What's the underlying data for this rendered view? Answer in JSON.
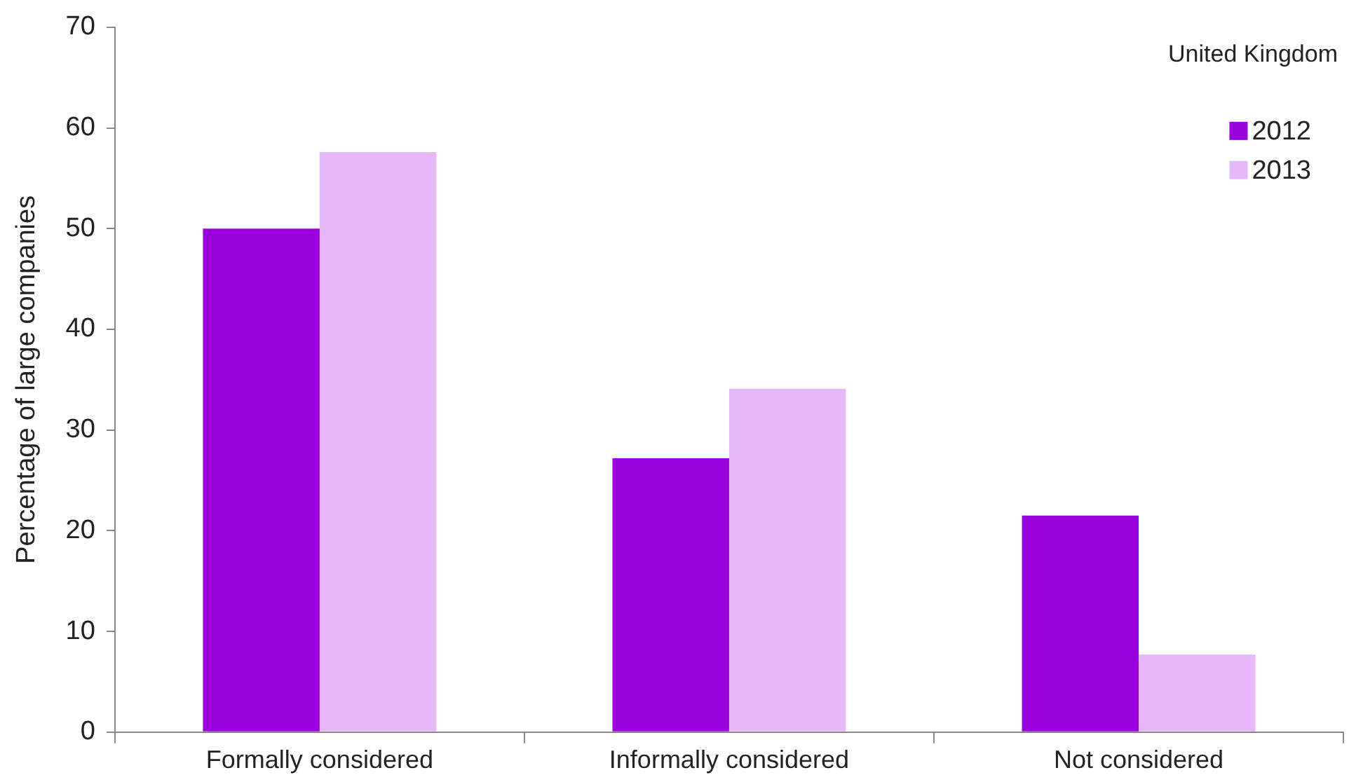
{
  "chart_data": {
    "type": "bar",
    "ylabel": "Percentage of large companies",
    "legend_title": "United Kingdom",
    "categories": [
      "Formally considered",
      "Informally considered",
      "Not considered"
    ],
    "series": [
      {
        "name": "2012",
        "color": "#9900dd",
        "values": [
          50,
          27.2,
          21.5
        ]
      },
      {
        "name": "2013",
        "color": "#e6b8fa",
        "values": [
          57.6,
          34.1,
          7.7
        ]
      }
    ],
    "ylim": [
      0,
      70
    ],
    "yticks": [
      0,
      10,
      20,
      30,
      40,
      50,
      60,
      70
    ],
    "grid": false,
    "legend": "top right"
  }
}
